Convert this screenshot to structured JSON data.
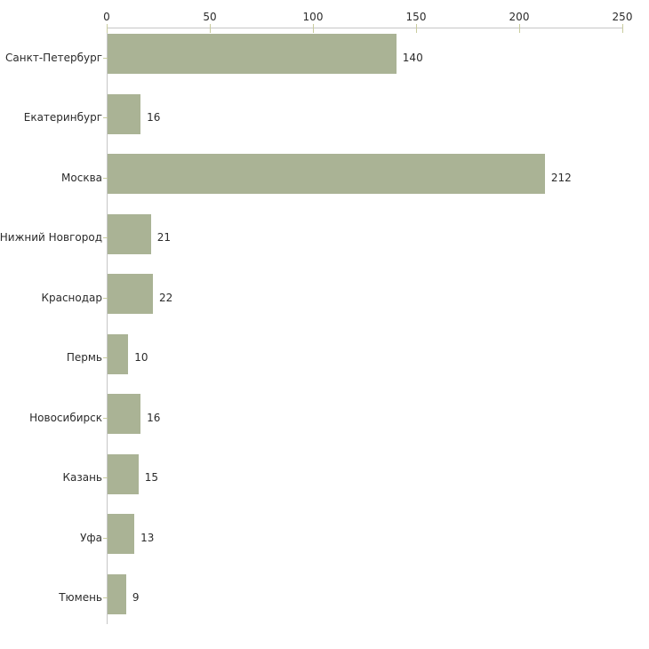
{
  "chart_data": {
    "type": "bar",
    "orientation": "horizontal",
    "title": "",
    "xlabel": "",
    "ylabel": "",
    "categories": [
      "Санкт-Петербург",
      "Екатеринбург",
      "Москва",
      "Нижний Новгород",
      "Краснодар",
      "Пермь",
      "Новосибирск",
      "Казань",
      "Уфа",
      "Тюмень"
    ],
    "values": [
      140,
      16,
      212,
      21,
      22,
      10,
      16,
      15,
      13,
      9
    ],
    "value_labels": [
      "140",
      "16",
      "212",
      "21",
      "22",
      "10",
      "16",
      "15",
      "13",
      "9"
    ],
    "x_ticks": [
      0,
      50,
      100,
      150,
      200,
      250
    ],
    "x_tick_labels": [
      "0",
      "50",
      "100",
      "150",
      "200",
      "250"
    ],
    "xlim": [
      0,
      250
    ],
    "grid": false,
    "legend": false,
    "colors": {
      "bar_fill": "#aab395",
      "axis_line": "#c6c6c6",
      "tick_mark": "#c9cc9e",
      "text": "#2b2b2b",
      "background": "#ffffff"
    }
  }
}
